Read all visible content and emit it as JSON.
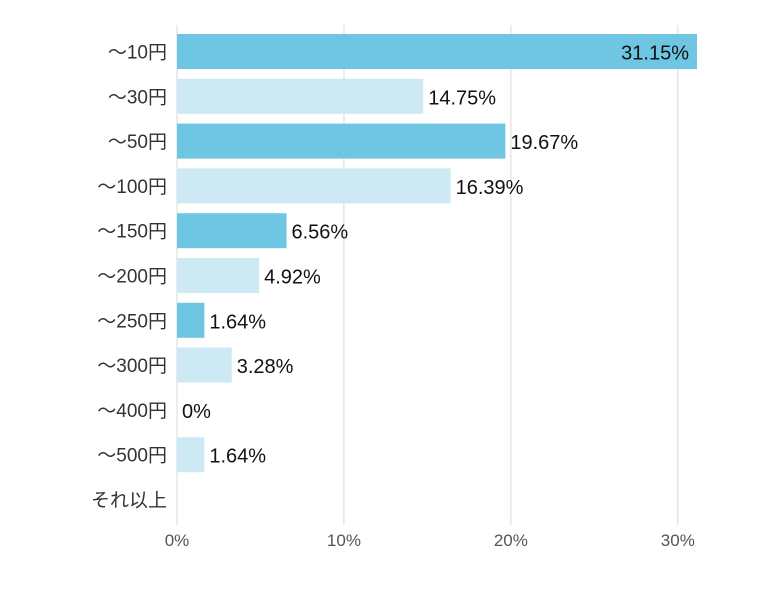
{
  "chart_data": {
    "type": "bar",
    "orientation": "horizontal",
    "categories": [
      "～10円",
      "～30円",
      "～50円",
      "～100円",
      "～150円",
      "～200円",
      "～250円",
      "～300円",
      "～400円",
      "～500円",
      "それ以上"
    ],
    "values": [
      31.15,
      14.75,
      19.67,
      16.39,
      6.56,
      4.92,
      1.64,
      3.28,
      0,
      1.64,
      null
    ],
    "value_labels": [
      "31.15%",
      "14.75%",
      "19.67%",
      "16.39%",
      "6.56%",
      "4.92%",
      "1.64%",
      "3.28%",
      "0%",
      "1.64%",
      ""
    ],
    "x_ticks": [
      0,
      10,
      20,
      30
    ],
    "x_tick_labels": [
      "0%",
      "10%",
      "20%",
      "30%"
    ],
    "xlim": [
      0,
      31.15
    ],
    "title": "",
    "xlabel": "",
    "ylabel": "",
    "grid": true,
    "legend": "none",
    "colors": {
      "dark": "#6ec6e3",
      "light": "#cdeaf4",
      "grid": "#d9d9d9"
    }
  }
}
